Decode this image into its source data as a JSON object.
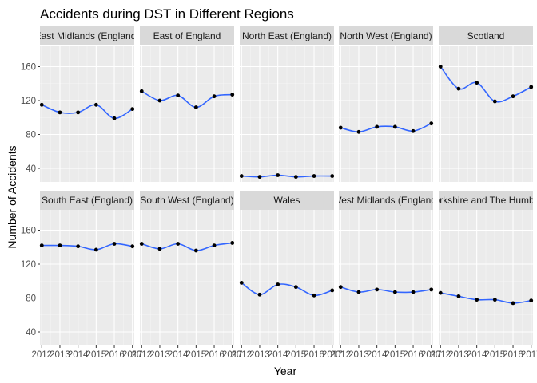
{
  "chart_data": {
    "type": "scatter",
    "title": "Accidents during DST in Different Regions",
    "xlabel": "Year",
    "ylabel": "Number of Accidents",
    "x": [
      2012,
      2013,
      2014,
      2015,
      2016,
      2017
    ],
    "xlim": [
      2011.9,
      2017.1
    ],
    "ylim": [
      24,
      184
    ],
    "y_ticks": [
      40,
      80,
      120,
      160
    ],
    "grid": true,
    "smooth_color": "#3366ff",
    "point_color": "#000000",
    "panel_background": "#ebebeb",
    "strip_background": "#d9d9d9",
    "facets": [
      {
        "name": "East Midlands (England)",
        "values": [
          115,
          106,
          106,
          115,
          99,
          110
        ]
      },
      {
        "name": "East of England",
        "values": [
          131,
          120,
          126,
          112,
          125,
          127
        ]
      },
      {
        "name": "North East (England)",
        "values": [
          31,
          30,
          32,
          30,
          31,
          31
        ]
      },
      {
        "name": "North West (England)",
        "values": [
          88,
          83,
          89,
          89,
          84,
          93
        ]
      },
      {
        "name": "Scotland",
        "values": [
          160,
          134,
          141,
          119,
          125,
          136
        ]
      },
      {
        "name": "South East (England)",
        "values": [
          142,
          142,
          141,
          137,
          144,
          141
        ]
      },
      {
        "name": "South West (England)",
        "values": [
          144,
          138,
          144,
          136,
          142,
          145
        ]
      },
      {
        "name": "Wales",
        "values": [
          98,
          84,
          96,
          93,
          83,
          89
        ]
      },
      {
        "name": "West Midlands (England)",
        "values": [
          93,
          87,
          90,
          87,
          87,
          90
        ]
      },
      {
        "name": "Yorkshire and The Humber",
        "values": [
          86,
          82,
          78,
          78,
          74,
          77
        ]
      }
    ]
  }
}
